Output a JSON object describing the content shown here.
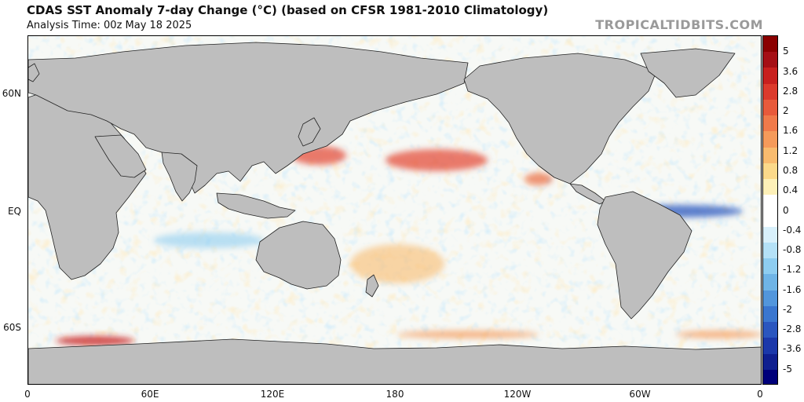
{
  "header": {
    "title": "CDAS SST Anomaly 7-day Change (°C) (based on CFSR 1981-2010 Climatology)",
    "analysis_time": "Analysis Time: 00z May 18 2025",
    "credit": "TROPICALTIDBITS.COM"
  },
  "map": {
    "projection": "equirectangular",
    "center_longitude": 180,
    "land_color": "#bebebe",
    "lat_labels": [
      "60N",
      "EQ",
      "60S"
    ],
    "lon_labels": [
      "0",
      "60E",
      "120E",
      "180",
      "120W",
      "60W",
      "0"
    ]
  },
  "colorbar": {
    "labels": [
      "5",
      "3.6",
      "2.8",
      "2",
      "1.6",
      "1.2",
      "0.8",
      "0.4",
      "0",
      "-0.4",
      "-0.8",
      "-1.2",
      "-1.6",
      "-2",
      "-2.8",
      "-3.6",
      "-5"
    ],
    "colors": [
      "#8b0000",
      "#a50f15",
      "#c8201e",
      "#dc3a2c",
      "#e85a3b",
      "#f07a4a",
      "#f59a5a",
      "#f8bb6e",
      "#fbd98a",
      "#fdf0b8",
      "#ffffff",
      "#ffffff",
      "#d8f0fb",
      "#b4e1f7",
      "#8ecdf0",
      "#6fb4e6",
      "#5296dc",
      "#3a76cf",
      "#2a56bf",
      "#1b38aa",
      "#0f1f8f",
      "#00007a"
    ]
  }
}
